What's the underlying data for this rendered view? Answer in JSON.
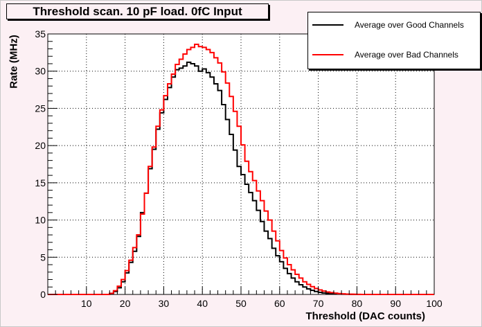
{
  "chart_data": {
    "type": "line",
    "title": "Threshold scan. 10 pF load. 0fC Input",
    "xlabel": "Threshold (DAC counts)",
    "ylabel": "Rate (MHz)",
    "xlim": [
      0,
      100
    ],
    "ylim": [
      0,
      35
    ],
    "xticks": [
      10,
      20,
      30,
      40,
      50,
      60,
      70,
      80,
      90,
      100
    ],
    "yticks": [
      0,
      5,
      10,
      15,
      20,
      25,
      30,
      35
    ],
    "grid": true,
    "legend_position": "top-right",
    "bin_width": 1,
    "x_start": 0,
    "series": [
      {
        "name": "Average over Good Channels",
        "color": "#000000",
        "values": [
          0,
          0,
          0,
          0,
          0,
          0,
          0,
          0,
          0,
          0,
          0,
          0,
          0,
          0,
          0,
          0,
          0.1,
          0.4,
          0.9,
          1.7,
          2.9,
          4.3,
          5.8,
          7.8,
          11.0,
          13.6,
          16.9,
          19.5,
          22.2,
          24.4,
          26.2,
          27.8,
          29.2,
          30.2,
          30.4,
          30.7,
          31.2,
          31.0,
          30.7,
          30.0,
          30.3,
          29.8,
          29.2,
          28.3,
          27.4,
          25.5,
          23.5,
          21.5,
          19.4,
          17.2,
          16.1,
          14.8,
          13.7,
          12.6,
          11.3,
          9.8,
          8.5,
          7.5,
          6.2,
          5.2,
          4.4,
          3.5,
          2.8,
          2.2,
          1.7,
          1.3,
          1.0,
          0.75,
          0.55,
          0.4,
          0.28,
          0.2,
          0.14,
          0.1,
          0.07,
          0.05,
          0.03,
          0.02,
          0.01,
          0.01,
          0,
          0,
          0,
          0,
          0,
          0,
          0,
          0,
          0,
          0,
          0,
          0,
          0,
          0,
          0,
          0,
          0,
          0,
          0,
          0
        ]
      },
      {
        "name": "Average over Bad Channels",
        "color": "#ff0000",
        "values": [
          0,
          0,
          0,
          0,
          0,
          0,
          0,
          0,
          0,
          0,
          0,
          0,
          0,
          0,
          0,
          0,
          0.15,
          0.5,
          1.1,
          2.0,
          3.2,
          4.6,
          6.3,
          8.0,
          10.8,
          13.6,
          17.2,
          19.8,
          22.6,
          24.8,
          26.7,
          28.3,
          29.6,
          30.9,
          31.6,
          32.3,
          32.9,
          33.2,
          33.6,
          33.3,
          33.2,
          32.9,
          32.5,
          31.8,
          31.1,
          29.9,
          28.4,
          26.6,
          24.6,
          22.6,
          20.1,
          17.9,
          16.5,
          15.3,
          13.9,
          12.6,
          11.2,
          10.0,
          8.5,
          7.2,
          5.9,
          4.9,
          4.0,
          3.3,
          2.7,
          2.2,
          1.7,
          1.35,
          1.05,
          0.8,
          0.6,
          0.45,
          0.33,
          0.24,
          0.17,
          0.12,
          0.08,
          0.05,
          0.03,
          0.02,
          0.01,
          0,
          0,
          0,
          0,
          0,
          0,
          0,
          0,
          0,
          0,
          0,
          0,
          0,
          0,
          0,
          0,
          0,
          0,
          0
        ]
      }
    ]
  }
}
